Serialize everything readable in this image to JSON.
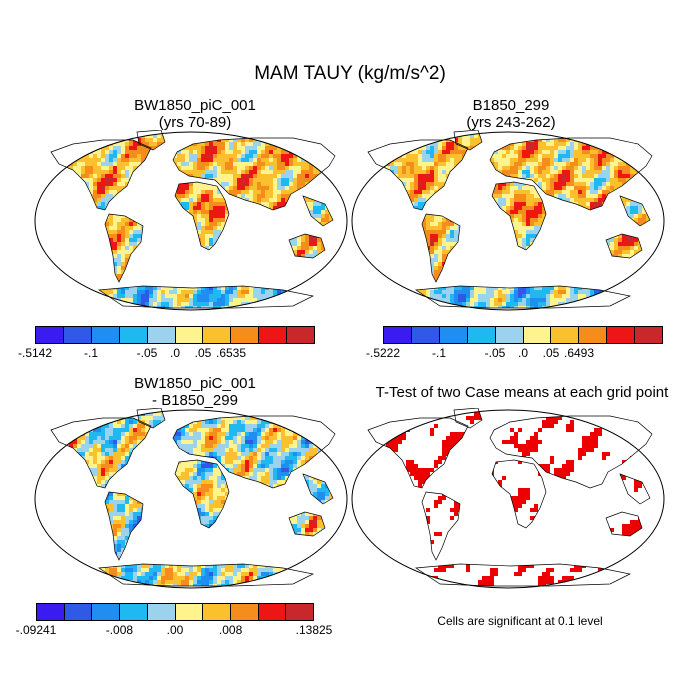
{
  "figure": {
    "title": "MAM TAUY (kg/m/s^2)",
    "footnote": "Cells are significant at 0.1 level"
  },
  "palette": [
    "#3a1cf0",
    "#2f5ae8",
    "#1f8ef0",
    "#1fb8f0",
    "#9bd3ee",
    "#fff38e",
    "#fbc02d",
    "#f58d1c",
    "#ee1515",
    "#c8272c"
  ],
  "chart_data": [
    {
      "type": "heatmap",
      "panel": "top-left",
      "title_line1": "BW1850_piC_001",
      "title_line2": "(yrs 70-89)",
      "projection": "Robinson",
      "colorbar": {
        "levels": 10,
        "tick_labels": [
          "-.5142",
          "-.1",
          "-.05",
          ".0",
          ".05",
          ".6535"
        ],
        "tick_boundaries": [
          0,
          2,
          4,
          5,
          6,
          7,
          10
        ],
        "min": -0.5142,
        "max": 0.6535
      }
    },
    {
      "type": "heatmap",
      "panel": "top-right",
      "title_line1": "B1850_299",
      "title_line2": "(yrs 243-262)",
      "projection": "Robinson",
      "colorbar": {
        "levels": 10,
        "tick_labels": [
          "-.5222",
          "-.1",
          "-.05",
          ".0",
          ".05",
          ".6493"
        ],
        "tick_boundaries": [
          0,
          2,
          4,
          5,
          6,
          7,
          10
        ],
        "min": -0.5222,
        "max": 0.6493
      }
    },
    {
      "type": "heatmap",
      "panel": "bottom-left",
      "title_line1": "BW1850_piC_001",
      "title_line2": "- B1850_299",
      "projection": "Robinson",
      "colorbar": {
        "levels": 10,
        "tick_labels": [
          "-.09241",
          "-.008",
          ".00",
          ".008",
          ".13825"
        ],
        "tick_boundaries": [
          0,
          3,
          5,
          7,
          10
        ],
        "min": -0.09241,
        "max": 0.13825
      }
    },
    {
      "type": "heatmap",
      "panel": "bottom-right",
      "title_line1": "T-Test of two Case means at each grid point",
      "projection": "Robinson",
      "significance_level": 0.1,
      "significant_color": "#ee0000"
    }
  ]
}
